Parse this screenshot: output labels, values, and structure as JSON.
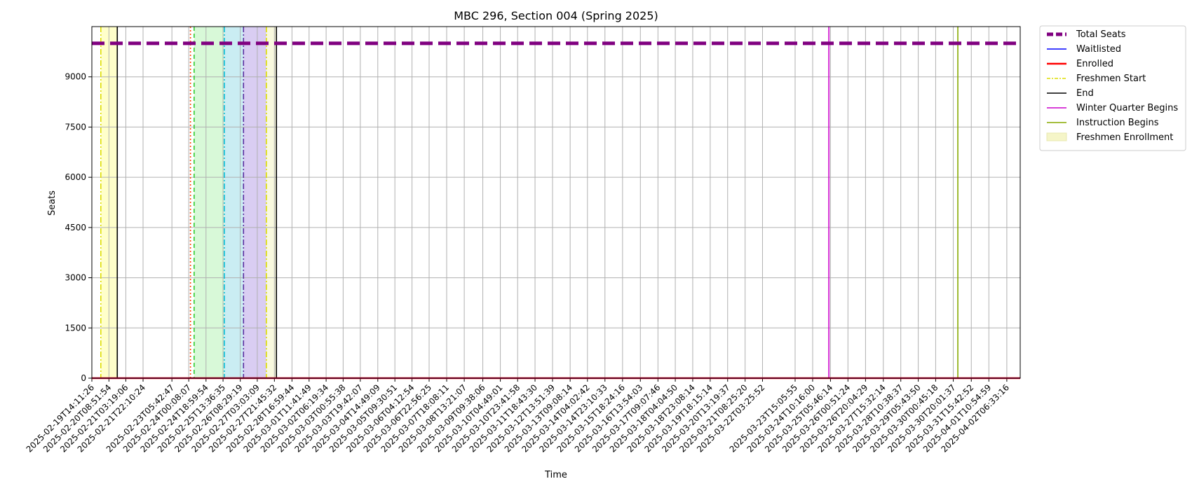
{
  "chart_data": {
    "type": "line",
    "title": "MBC 296, Section 004 (Spring 2025)",
    "xlabel": "Time",
    "ylabel": "Seats",
    "ylim": [
      0,
      10500
    ],
    "yticks": [
      0,
      1500,
      3000,
      4500,
      6000,
      7500,
      9000
    ],
    "x_start": "2025-02-19T14:11:26",
    "x_end": "2025-04-02T21:12:00",
    "grid": true,
    "legend_position": "outside-top-right",
    "x_tick_labels": [
      "2025-02-19T14:11:26",
      "2025-02-20T08:51:54",
      "2025-02-21T03:19:06",
      "2025-02-21T22:10:24",
      "2025-02-23T05:42:47",
      "2025-02-24T00:08:07",
      "2025-02-24T18:59:54",
      "2025-02-25T13:36:35",
      "2025-02-26T08:29:19",
      "2025-02-27T03:03:09",
      "2025-02-27T21:45:32",
      "2025-02-28T16:59:44",
      "2025-03-01T11:41:49",
      "2025-03-02T06:19:34",
      "2025-03-03T00:55:38",
      "2025-03-03T19:42:07",
      "2025-03-04T14:49:09",
      "2025-03-05T09:30:51",
      "2025-03-06T04:12:54",
      "2025-03-06T22:56:25",
      "2025-03-07T18:08:11",
      "2025-03-08T13:21:07",
      "2025-03-09T09:38:06",
      "2025-03-10T04:49:01",
      "2025-03-10T23:41:58",
      "2025-03-11T18:43:30",
      "2025-03-12T13:51:39",
      "2025-03-13T09:08:14",
      "2025-03-14T04:02:42",
      "2025-03-14T23:10:33",
      "2025-03-15T18:24:16",
      "2025-03-16T13:54:03",
      "2025-03-17T09:07:46",
      "2025-03-18T04:04:50",
      "2025-03-18T23:08:14",
      "2025-03-19T18:15:14",
      "2025-03-20T13:19:37",
      "2025-03-21T08:25:20",
      "2025-03-22T03:25:52",
      "2025-03-23T15:05:55",
      "2025-03-24T10:16:00",
      "2025-03-25T05:46:14",
      "2025-03-26T00:51:24",
      "2025-03-26T20:04:29",
      "2025-03-27T15:32:14",
      "2025-03-28T10:38:37",
      "2025-03-29T05:43:50",
      "2025-03-30T00:45:18",
      "2025-03-30T20:01:37",
      "2025-03-31T15:42:52",
      "2025-04-01T10:54:59",
      "2025-04-02T06:33:16"
    ],
    "series": [
      {
        "name": "Total Seats",
        "color": "#800080",
        "style": "dashed-thick",
        "x": [
          "2025-02-19T14:11:26",
          "2025-04-02T21:12:00"
        ],
        "values": [
          10000,
          10000
        ]
      },
      {
        "name": "Waitlisted",
        "color": "#0000ff",
        "style": "solid",
        "x": [
          "2025-02-19T14:11:26",
          "2025-04-02T21:12:00"
        ],
        "values": [
          0,
          0
        ]
      },
      {
        "name": "Enrolled",
        "color": "#ff0000",
        "style": "solid-thick",
        "x": [
          "2025-02-19T14:11:26",
          "2025-04-02T21:12:00"
        ],
        "values": [
          0,
          0
        ]
      }
    ],
    "shaded_periods": [
      {
        "start": "2025-02-20T00:00:00",
        "end": "2025-02-20T18:00:00",
        "color": "#ffff66",
        "opacity": 0.35
      },
      {
        "start": "2025-02-24T06:00:00",
        "end": "2025-02-25T15:00:00",
        "color": "#90ee90",
        "opacity": 0.35
      },
      {
        "start": "2025-02-25T15:00:00",
        "end": "2025-02-26T12:00:00",
        "color": "#66ccdd",
        "opacity": 0.35
      },
      {
        "start": "2025-02-26T12:00:00",
        "end": "2025-02-27T13:00:00",
        "color": "#9370db",
        "opacity": 0.35
      },
      {
        "start": "2025-02-27T13:00:00",
        "end": "2025-02-28T00:00:00",
        "color": "#f5f5c8",
        "opacity": 0.6
      }
    ],
    "vertical_lines": [
      {
        "x": "2025-02-20T00:00:00",
        "color": "#dddd00",
        "style": "dashdot"
      },
      {
        "x": "2025-02-20T18:00:00",
        "color": "#000000",
        "style": "solid"
      },
      {
        "x": "2025-02-24T02:00:00",
        "color": "#ff4500",
        "style": "dotted"
      },
      {
        "x": "2025-02-24T06:00:00",
        "color": "#32cd32",
        "style": "dashed"
      },
      {
        "x": "2025-02-25T15:00:00",
        "color": "#00bcd4",
        "style": "dashdot"
      },
      {
        "x": "2025-02-26T12:00:00",
        "color": "#5b2c9e",
        "style": "dashdot"
      },
      {
        "x": "2025-02-27T13:00:00",
        "color": "#dddd00",
        "style": "dashdot"
      },
      {
        "x": "2025-02-28T00:00:00",
        "color": "#000000",
        "style": "solid"
      },
      {
        "x": "2025-03-25T04:00:00",
        "color": "#cc00cc",
        "style": "solid"
      },
      {
        "x": "2025-03-31T01:00:00",
        "color": "#88aa00",
        "style": "solid"
      }
    ],
    "legend": [
      {
        "label": "Total Seats",
        "color": "#800080",
        "kind": "dashed-thick"
      },
      {
        "label": "Waitlisted",
        "color": "#0000ff",
        "kind": "line"
      },
      {
        "label": "Enrolled",
        "color": "#ff0000",
        "kind": "line-thick"
      },
      {
        "label": "Freshmen Start",
        "color": "#dddd00",
        "kind": "dashdot"
      },
      {
        "label": "End",
        "color": "#000000",
        "kind": "line"
      },
      {
        "label": "Winter Quarter Begins",
        "color": "#cc00cc",
        "kind": "line"
      },
      {
        "label": "Instruction Begins",
        "color": "#88aa00",
        "kind": "line"
      },
      {
        "label": "Freshmen Enrollment",
        "color": "#f5f5c8",
        "kind": "patch"
      }
    ]
  }
}
